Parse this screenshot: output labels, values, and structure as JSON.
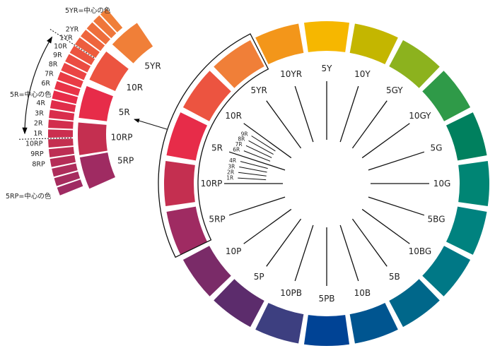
{
  "wheel": {
    "hues": [
      {
        "label": "5Y",
        "color": "#f6b700"
      },
      {
        "label": "10Y",
        "color": "#c4b600"
      },
      {
        "label": "5GY",
        "color": "#8cb21e"
      },
      {
        "label": "10GY",
        "color": "#2f9a48"
      },
      {
        "label": "5G",
        "color": "#00805e"
      },
      {
        "label": "10G",
        "color": "#008574"
      },
      {
        "label": "5BG",
        "color": "#00827f"
      },
      {
        "label": "10BG",
        "color": "#007886"
      },
      {
        "label": "5B",
        "color": "#00678a"
      },
      {
        "label": "10B",
        "color": "#005590"
      },
      {
        "label": "5PB",
        "color": "#004395"
      },
      {
        "label": "10PB",
        "color": "#3d3f80"
      },
      {
        "label": "5P",
        "color": "#5c2c6c"
      },
      {
        "label": "10P",
        "color": "#7a2b68"
      },
      {
        "label": "5RP",
        "color": "#9f2b62"
      },
      {
        "label": "10RP",
        "color": "#c42f50"
      },
      {
        "label": "5R",
        "color": "#e72c49"
      },
      {
        "label": "10R",
        "color": "#ec5440"
      },
      {
        "label": "5YR",
        "color": "#f07f38"
      },
      {
        "label": "10YR",
        "color": "#f3961a"
      }
    ],
    "sub_ticks": [
      "1R",
      "2R",
      "3R",
      "4R",
      "6R",
      "7R",
      "8R",
      "9R"
    ]
  },
  "inset": {
    "segments": [
      {
        "label": "5RP",
        "color": "#9f2b62"
      },
      {
        "label": "10RP",
        "color": "#c42f50"
      },
      {
        "label": "5R",
        "color": "#e72c49"
      },
      {
        "label": "10R",
        "color": "#ec5440"
      },
      {
        "label": "5YR",
        "color": "#f07f38"
      }
    ],
    "strip_labels": [
      "8RP",
      "9RP",
      "10RP",
      "1R",
      "2R",
      "3R",
      "4R",
      "6R",
      "7R",
      "8R",
      "9R",
      "10R",
      "1YR",
      "2YR"
    ],
    "top_note": "5YR=中心の色",
    "middle_note": "5R=中心の色",
    "bottom_note": "5RP=中心の色"
  }
}
